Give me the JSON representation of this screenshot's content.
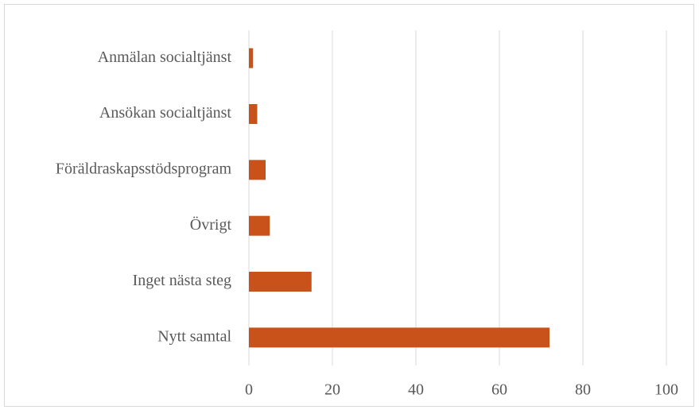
{
  "chart_data": {
    "type": "hbar",
    "categories": [
      "Anmälan socialtjänst",
      "Ansökan socialtjänst",
      "Föräldraskapsstödsprogram",
      "Övrigt",
      "Inget nästa steg",
      "Nytt samtal"
    ],
    "values": [
      1,
      2,
      4,
      5,
      15,
      72
    ],
    "color": "#c9521b",
    "xlim": [
      0,
      100
    ],
    "xticks": [
      0,
      20,
      40,
      60,
      80,
      100
    ],
    "grid": true
  }
}
